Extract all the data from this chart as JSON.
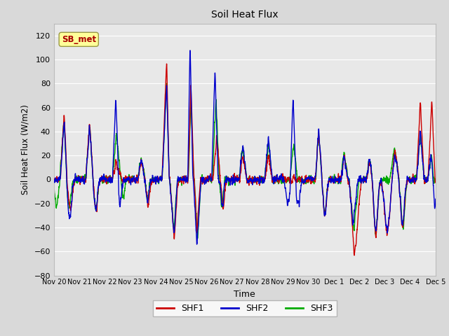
{
  "title": "Soil Heat Flux",
  "xlabel": "Time",
  "ylabel": "Soil Heat Flux (W/m2)",
  "ylim": [
    -80,
    130
  ],
  "yticks": [
    -80,
    -60,
    -40,
    -20,
    0,
    20,
    40,
    60,
    80,
    100,
    120
  ],
  "colors": {
    "SHF1": "#cc0000",
    "SHF2": "#0000cc",
    "SHF3": "#00aa00"
  },
  "annotation": "SB_met",
  "annotation_color": "#aa0000",
  "annotation_bg": "#ffff99",
  "fig_bg": "#d9d9d9",
  "plot_bg": "#e8e8e8",
  "grid_color": "#ffffff",
  "x_labels": [
    "Nov 20",
    "Nov 21",
    "Nov 22",
    "Nov 23",
    "Nov 24",
    "Nov 25",
    "Nov 26",
    "Nov 27",
    "Nov 28",
    "Nov 29",
    "Nov 30",
    "Dec 1",
    "Dec 2",
    "Dec 3",
    "Dec 4",
    "Dec 5"
  ],
  "num_points": 3000
}
